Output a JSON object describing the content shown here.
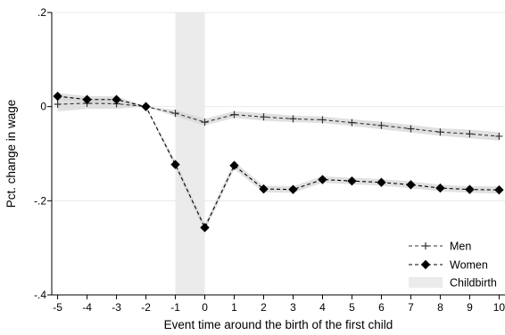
{
  "chart_data": {
    "type": "line",
    "title": "",
    "xlabel": "Event time around the birth of the first child",
    "ylabel": "Pct. change in wage",
    "x": [
      -5,
      -4,
      -3,
      -2,
      -1,
      0,
      1,
      2,
      3,
      4,
      5,
      6,
      7,
      8,
      9,
      10
    ],
    "xlim": [
      -5.2,
      10.2
    ],
    "ylim": [
      -0.4,
      0.2
    ],
    "yticks": [
      ".2",
      "0",
      "-.2",
      "-.4"
    ],
    "ytick_values": [
      0.2,
      0.0,
      -0.2,
      -0.4
    ],
    "grid": "horizontal",
    "legend_position": "bottom-right",
    "shaded_band": {
      "label": "Childbirth",
      "x": [
        -1,
        0
      ],
      "color": "#ebebeb"
    },
    "series": [
      {
        "name": "Men",
        "marker": "plus",
        "color": "#333333",
        "values": [
          0.005,
          0.007,
          0.006,
          0.0,
          -0.014,
          -0.033,
          -0.017,
          -0.022,
          -0.026,
          -0.028,
          -0.034,
          -0.04,
          -0.047,
          -0.054,
          -0.058,
          -0.063
        ],
        "ci_lower": [
          -0.01,
          -0.005,
          -0.005,
          0.0,
          -0.021,
          -0.04,
          -0.024,
          -0.03,
          -0.033,
          -0.035,
          -0.041,
          -0.048,
          -0.055,
          -0.062,
          -0.067,
          -0.072
        ],
        "ci_upper": [
          0.02,
          0.019,
          0.017,
          0.0,
          -0.007,
          -0.026,
          -0.01,
          -0.014,
          -0.019,
          -0.021,
          -0.027,
          -0.032,
          -0.039,
          -0.046,
          -0.049,
          -0.054
        ]
      },
      {
        "name": "Women",
        "marker": "diamond",
        "color": "#000000",
        "values": [
          0.022,
          0.015,
          0.015,
          0.0,
          -0.123,
          -0.257,
          -0.125,
          -0.175,
          -0.176,
          -0.155,
          -0.158,
          -0.161,
          -0.166,
          -0.173,
          -0.176,
          -0.177
        ],
        "ci_lower": [
          0.015,
          0.008,
          0.008,
          0.0,
          -0.131,
          -0.265,
          -0.133,
          -0.182,
          -0.183,
          -0.162,
          -0.165,
          -0.168,
          -0.173,
          -0.18,
          -0.183,
          -0.185
        ],
        "ci_upper": [
          0.029,
          0.022,
          0.022,
          0.0,
          -0.115,
          -0.249,
          -0.117,
          -0.168,
          -0.169,
          -0.148,
          -0.151,
          -0.154,
          -0.159,
          -0.166,
          -0.169,
          -0.169
        ]
      }
    ]
  }
}
